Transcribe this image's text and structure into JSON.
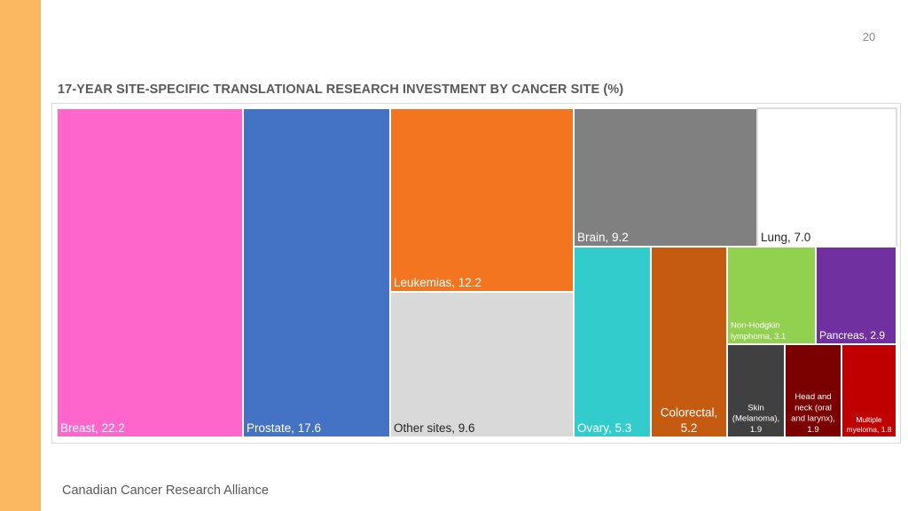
{
  "slide": {
    "page_number": "20",
    "footer": "Canadian Cancer Research Alliance",
    "accent_color": "#fbb860"
  },
  "chart_data": {
    "type": "treemap",
    "title": "17-YEAR SITE-SPECIFIC TRANSLATIONAL RESEARCH INVESTMENT BY CANCER SITE (%)",
    "unit": "%",
    "series": [
      {
        "name": "Breast",
        "value": 22.2,
        "label_lines": [
          "Breast, 22.2"
        ],
        "color": "#ff66cc",
        "text_color": "#ffffff"
      },
      {
        "name": "Prostate",
        "value": 17.6,
        "label_lines": [
          "Prostate, 17.6"
        ],
        "color": "#4472c4",
        "text_color": "#ffffff"
      },
      {
        "name": "Leukemias",
        "value": 12.2,
        "label_lines": [
          "Leukemias, 12.2"
        ],
        "color": "#f47520",
        "text_color": "#ffffff"
      },
      {
        "name": "Other sites",
        "value": 9.6,
        "label_lines": [
          "Other sites, 9.6"
        ],
        "color": "#d9d9d9",
        "text_color": "#262626"
      },
      {
        "name": "Brain",
        "value": 9.2,
        "label_lines": [
          "Brain, 9.2"
        ],
        "color": "#808080",
        "text_color": "#ffffff"
      },
      {
        "name": "Lung",
        "value": 7.0,
        "label_lines": [
          "Lung, 7.0"
        ],
        "color": "#ffffff",
        "text_color": "#262626"
      },
      {
        "name": "Ovary",
        "value": 5.3,
        "label_lines": [
          "Ovary, 5.3"
        ],
        "color": "#33cccc",
        "text_color": "#ffffff"
      },
      {
        "name": "Colorectal",
        "value": 5.2,
        "label_lines": [
          "Colorectal,",
          "5.2"
        ],
        "color": "#c55a11",
        "text_color": "#ffffff"
      },
      {
        "name": "Non-Hodgkin lymphoma",
        "value": 3.1,
        "label_lines": [
          "Non-Hodgkin",
          "lymphoma, 3.1"
        ],
        "color": "#92d050",
        "text_color": "#ffffff"
      },
      {
        "name": "Pancreas",
        "value": 2.9,
        "label_lines": [
          "Pancreas, 2.9"
        ],
        "color": "#7030a0",
        "text_color": "#ffffff"
      },
      {
        "name": "Skin (Melanoma)",
        "value": 1.9,
        "label_lines": [
          "Skin",
          "(Melanoma),",
          "1.9"
        ],
        "color": "#404040",
        "text_color": "#ffffff"
      },
      {
        "name": "Head and neck (oral and larynx)",
        "value": 1.9,
        "label_lines": [
          "Head and",
          "neck (oral",
          "and larynx),",
          "1.9"
        ],
        "color": "#7b0000",
        "text_color": "#ffffff"
      },
      {
        "name": "Multiple myeloma",
        "value": 1.8,
        "label_lines": [
          "Multiple",
          "myeloma, 1.8"
        ],
        "color": "#c00000",
        "text_color": "#ffffff"
      }
    ]
  }
}
